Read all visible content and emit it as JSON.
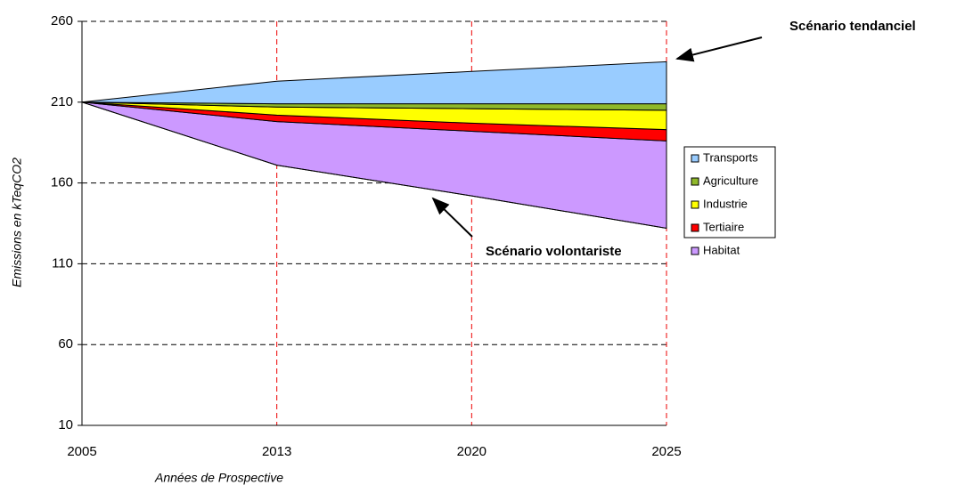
{
  "chart_data": {
    "type": "stacked_area",
    "x_label": "Années de Prospective",
    "y_label": "Emissions en kTeqCO2",
    "categories": [
      "2005",
      "2013",
      "2020",
      "2025"
    ],
    "baseline": {
      "name": "Scénario volontariste",
      "values": [
        210,
        171,
        152,
        132
      ]
    },
    "series": [
      {
        "name": "Habitat",
        "color": "#cc99ff",
        "values": [
          0,
          27,
          40,
          54
        ]
      },
      {
        "name": "Tertiaire",
        "color": "#ff0000",
        "values": [
          0,
          4,
          5,
          7
        ]
      },
      {
        "name": "Industrie",
        "color": "#ffff00",
        "values": [
          0,
          5,
          9,
          12
        ]
      },
      {
        "name": "Agriculture",
        "color": "#8fb82a",
        "values": [
          0,
          2,
          3,
          4
        ]
      },
      {
        "name": "Transports",
        "color": "#99ccff",
        "values": [
          0,
          14,
          20,
          26
        ]
      }
    ],
    "annotations": [
      "Scénario tendanciel"
    ],
    "ylim": [
      10,
      260
    ],
    "yticks": [
      10,
      60,
      110,
      160,
      210,
      260
    ],
    "grid": true
  }
}
